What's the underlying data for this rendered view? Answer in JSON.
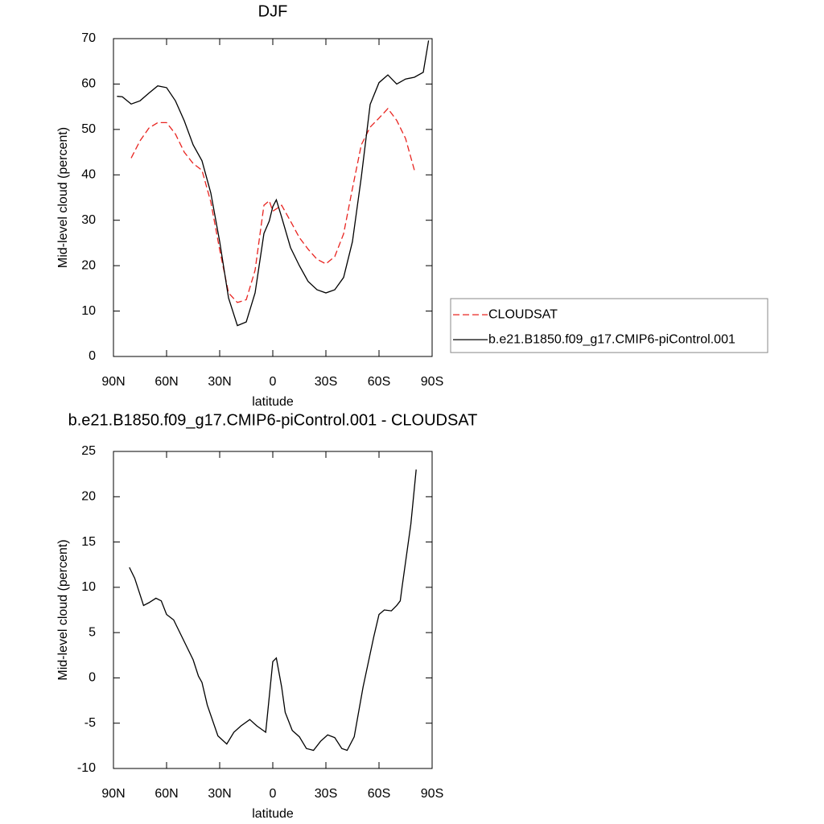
{
  "chart_data": [
    {
      "type": "line",
      "title": "DJF",
      "xlabel": "latitude",
      "ylabel": "Mid-level cloud (percent)",
      "x": [
        88,
        85,
        80,
        75,
        70,
        65,
        60,
        55,
        50,
        45,
        40,
        35,
        30,
        25,
        20,
        15,
        10,
        5,
        2,
        0,
        -2,
        -5,
        -10,
        -15,
        -20,
        -25,
        -30,
        -35,
        -40,
        -45,
        -50,
        -55,
        -60,
        -65,
        -70,
        -75,
        -80,
        -85,
        -88
      ],
      "series": [
        {
          "name": "CLOUDSAT",
          "color": "#e8231f",
          "linestyle": "dashed",
          "values": [
            null,
            null,
            43.7,
            47.5,
            50.3,
            51.5,
            51.5,
            49,
            45,
            42.5,
            41,
            34,
            23.5,
            14,
            11.9,
            12.5,
            19,
            33.3,
            34.3,
            32,
            32.5,
            33.3,
            29.8,
            26.2,
            23.6,
            21.4,
            20.4,
            22,
            27,
            37,
            46.6,
            50.5,
            52.5,
            54.6,
            52,
            48,
            41,
            null,
            null
          ]
        },
        {
          "name": "b.e21.B1850.f09_g17.CMIP6-piControl.001",
          "color": "#000000",
          "linestyle": "solid",
          "values": [
            57.3,
            57.2,
            55.6,
            56.3,
            58,
            59.6,
            59.2,
            56.3,
            51.9,
            46.6,
            43.1,
            36,
            25.3,
            12.9,
            6.8,
            7.6,
            14,
            27.1,
            29.8,
            33,
            34.5,
            30.7,
            24,
            20,
            16.5,
            14.7,
            14,
            14.7,
            17.4,
            25.3,
            39.5,
            55.5,
            60.3,
            62,
            60,
            61.1,
            61.5,
            62.6,
            69.6
          ]
        }
      ],
      "xlim": [
        90,
        -90
      ],
      "xticks": [
        {
          "value": 90,
          "label": "90N"
        },
        {
          "value": 60,
          "label": "60N"
        },
        {
          "value": 30,
          "label": "30N"
        },
        0,
        {
          "value": -30,
          "label": "30S"
        },
        {
          "value": -60,
          "label": "60S"
        },
        {
          "value": -90,
          "label": "90S"
        }
      ],
      "ylim": [
        0,
        70
      ],
      "yticks": [
        0,
        10,
        20,
        30,
        40,
        50,
        60,
        70
      ],
      "legend": "right"
    },
    {
      "type": "line",
      "title": "b.e21.B1850.f09_g17.CMIP6-piControl.001 - CLOUDSAT",
      "xlabel": "latitude",
      "ylabel": "Mid-level cloud (percent)",
      "x": [
        81,
        78,
        73,
        70,
        66,
        63,
        60,
        56,
        50,
        45,
        42,
        40,
        37,
        31,
        26,
        22,
        18,
        13,
        9,
        4,
        0,
        -2,
        -5,
        -7,
        -11,
        -15,
        -19,
        -23,
        -27,
        -31,
        -35,
        -39,
        -42,
        -46,
        -51,
        -57,
        -60,
        -63,
        -67,
        -70,
        -72,
        -73,
        -78,
        -81
      ],
      "series": [
        {
          "color": "#000000",
          "linestyle": "solid",
          "values": [
            12.2,
            11,
            8,
            8.3,
            8.8,
            8.5,
            7,
            6.4,
            4,
            2,
            0.2,
            -0.5,
            -3,
            -6.4,
            -7.3,
            -6,
            -5.3,
            -4.6,
            -5.3,
            -6,
            1.8,
            2.2,
            -1,
            -3.8,
            -5.8,
            -6.5,
            -7.8,
            -8,
            -7,
            -6.3,
            -6.6,
            -7.8,
            -8,
            -6.5,
            -1,
            4.5,
            7,
            7.5,
            7.4,
            8,
            8.5,
            10,
            17,
            23
          ]
        }
      ],
      "xlim": [
        90,
        -90
      ],
      "xticks": [
        {
          "value": 90,
          "label": "90N"
        },
        {
          "value": 60,
          "label": "60N"
        },
        {
          "value": 30,
          "label": "30N"
        },
        0,
        {
          "value": -30,
          "label": "30S"
        },
        {
          "value": -60,
          "label": "60S"
        },
        {
          "value": -90,
          "label": "90S"
        }
      ],
      "ylim": [
        -10,
        25
      ],
      "yticks": [
        -10,
        -5,
        0,
        5,
        10,
        15,
        20,
        25
      ]
    }
  ]
}
